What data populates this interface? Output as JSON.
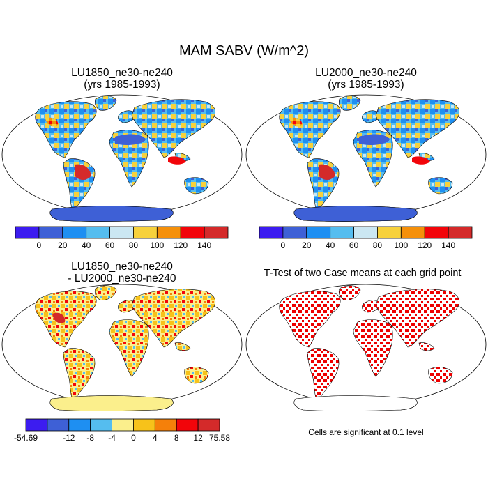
{
  "title": "MAM SABV (W/m^2)",
  "panels": [
    {
      "title_line1": "LU1850_ne30-ne240",
      "title_line2": "(yrs 1985-1993)"
    },
    {
      "title_line1": "LU2000_ne30-ne240",
      "title_line2": "(yrs 1985-1993)"
    },
    {
      "title_line1": "LU1850_ne30-ne240",
      "title_line2": "- LU2000_ne30-ne240"
    },
    {
      "title_line1": "T-Test of two Case means at each grid point",
      "title_line2": ""
    }
  ],
  "colorbar_abs": {
    "labels": [
      "0",
      "20",
      "40",
      "60",
      "80",
      "100",
      "120",
      "140"
    ],
    "colors": [
      "#3c1cf0",
      "#3e60d6",
      "#1e8ff2",
      "#55bdef",
      "#cbe7f2",
      "#f7d13c",
      "#f5900a",
      "#f2050a",
      "#d42a2a"
    ]
  },
  "colorbar_diff": {
    "labels": [
      "-54.69",
      "-12",
      "-8",
      "-4",
      "0",
      "4",
      "8",
      "12",
      "75.58"
    ],
    "colors": [
      "#3c1cf0",
      "#3e60d6",
      "#1e8ff2",
      "#55bdef",
      "#fbef8c",
      "#f7c21a",
      "#f5800a",
      "#f2050a",
      "#d42a2a"
    ]
  },
  "significance_note": "Cells are significant at 0.1 level"
}
